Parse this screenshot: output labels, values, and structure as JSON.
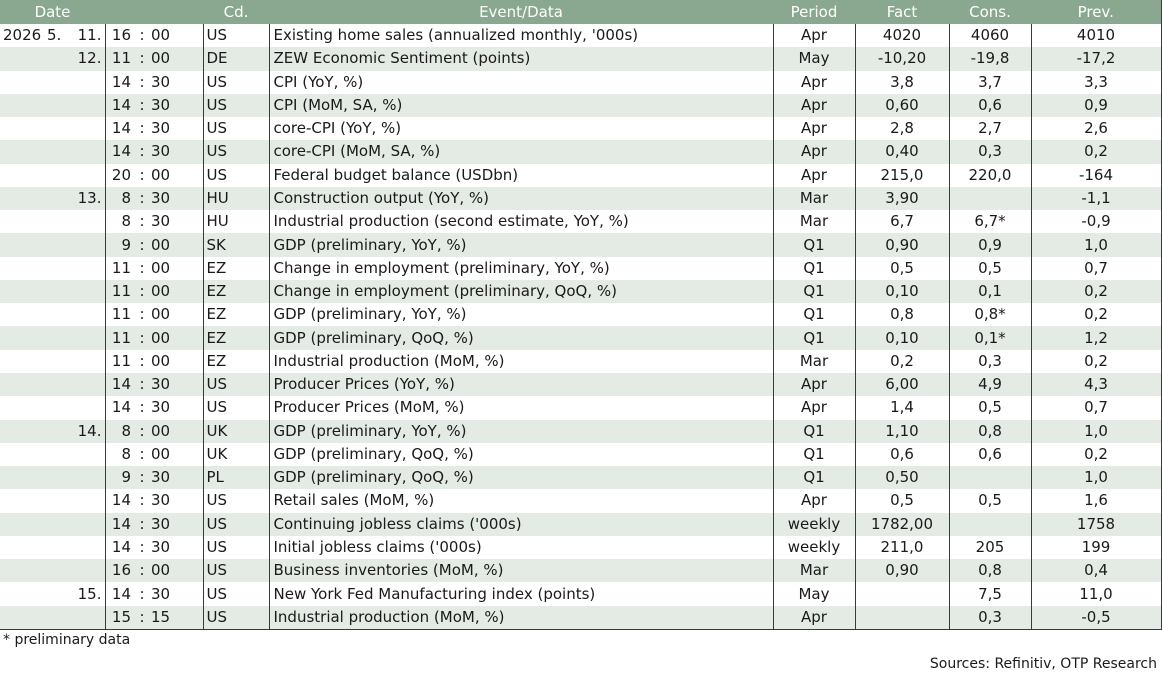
{
  "headers": {
    "date": "Date",
    "cd": "Cd.",
    "event": "Event/Data",
    "period": "Period",
    "fact": "Fact",
    "cons": "Cons.",
    "prev": "Prev."
  },
  "rows": [
    {
      "year": "2026",
      "month": "5.",
      "day": "11.",
      "hh": "16",
      "mm": "00",
      "cd": "US",
      "event": "Existing home sales (annualized monthly, '000s)",
      "period": "Apr",
      "fact": "4020",
      "cons": "4060",
      "prev": "4010"
    },
    {
      "year": "",
      "month": "",
      "day": "12.",
      "hh": "11",
      "mm": "00",
      "cd": "DE",
      "event": "ZEW Economic Sentiment (points)",
      "period": "May",
      "fact": "-10,20",
      "cons": "-19,8",
      "prev": "-17,2"
    },
    {
      "year": "",
      "month": "",
      "day": "",
      "hh": "14",
      "mm": "30",
      "cd": "US",
      "event": "CPI (YoY, %)",
      "period": "Apr",
      "fact": "3,8",
      "cons": "3,7",
      "prev": "3,3"
    },
    {
      "year": "",
      "month": "",
      "day": "",
      "hh": "14",
      "mm": "30",
      "cd": "US",
      "event": "CPI (MoM, SA, %)",
      "period": "Apr",
      "fact": "0,60",
      "cons": "0,6",
      "prev": "0,9"
    },
    {
      "year": "",
      "month": "",
      "day": "",
      "hh": "14",
      "mm": "30",
      "cd": "US",
      "event": "core-CPI (YoY, %)",
      "period": "Apr",
      "fact": "2,8",
      "cons": "2,7",
      "prev": "2,6"
    },
    {
      "year": "",
      "month": "",
      "day": "",
      "hh": "14",
      "mm": "30",
      "cd": "US",
      "event": "core-CPI (MoM, SA, %)",
      "period": "Apr",
      "fact": "0,40",
      "cons": "0,3",
      "prev": "0,2"
    },
    {
      "year": "",
      "month": "",
      "day": "",
      "hh": "20",
      "mm": "00",
      "cd": "US",
      "event": "Federal budget balance (USDbn)",
      "period": "Apr",
      "fact": "215,0",
      "cons": "220,0",
      "prev": "-164"
    },
    {
      "year": "",
      "month": "",
      "day": "13.",
      "hh": "8",
      "mm": "30",
      "cd": "HU",
      "event": "Construction output (YoY, %)",
      "period": "Mar",
      "fact": "3,90",
      "cons": "",
      "prev": "-1,1"
    },
    {
      "year": "",
      "month": "",
      "day": "",
      "hh": "8",
      "mm": "30",
      "cd": "HU",
      "event": "Industrial production (second estimate, YoY, %)",
      "period": "Mar",
      "fact": "6,7",
      "cons": "6,7*",
      "prev": "-0,9"
    },
    {
      "year": "",
      "month": "",
      "day": "",
      "hh": "9",
      "mm": "00",
      "cd": "SK",
      "event": "GDP (preliminary, YoY, %)",
      "period": "Q1",
      "fact": "0,90",
      "cons": "0,9",
      "prev": "1,0"
    },
    {
      "year": "",
      "month": "",
      "day": "",
      "hh": "11",
      "mm": "00",
      "cd": "EZ",
      "event": "Change in employment (preliminary, YoY, %)",
      "period": "Q1",
      "fact": "0,5",
      "cons": "0,5",
      "prev": "0,7"
    },
    {
      "year": "",
      "month": "",
      "day": "",
      "hh": "11",
      "mm": "00",
      "cd": "EZ",
      "event": "Change in employment (preliminary, QoQ, %)",
      "period": "Q1",
      "fact": "0,10",
      "cons": "0,1",
      "prev": "0,2"
    },
    {
      "year": "",
      "month": "",
      "day": "",
      "hh": "11",
      "mm": "00",
      "cd": "EZ",
      "event": "GDP (preliminary, YoY, %)",
      "period": "Q1",
      "fact": "0,8",
      "cons": "0,8*",
      "prev": "0,2"
    },
    {
      "year": "",
      "month": "",
      "day": "",
      "hh": "11",
      "mm": "00",
      "cd": "EZ",
      "event": "GDP (preliminary, QoQ, %)",
      "period": "Q1",
      "fact": "0,10",
      "cons": "0,1*",
      "prev": "1,2"
    },
    {
      "year": "",
      "month": "",
      "day": "",
      "hh": "11",
      "mm": "00",
      "cd": "EZ",
      "event": "Industrial production (MoM, %)",
      "period": "Mar",
      "fact": "0,2",
      "cons": "0,3",
      "prev": "0,2"
    },
    {
      "year": "",
      "month": "",
      "day": "",
      "hh": "14",
      "mm": "30",
      "cd": "US",
      "event": "Producer Prices (YoY, %)",
      "period": "Apr",
      "fact": "6,00",
      "cons": "4,9",
      "prev": "4,3"
    },
    {
      "year": "",
      "month": "",
      "day": "",
      "hh": "14",
      "mm": "30",
      "cd": "US",
      "event": "Producer Prices (MoM, %)",
      "period": "Apr",
      "fact": "1,4",
      "cons": "0,5",
      "prev": "0,7"
    },
    {
      "year": "",
      "month": "",
      "day": "14.",
      "hh": "8",
      "mm": "00",
      "cd": "UK",
      "event": "GDP (preliminary, YoY, %)",
      "period": "Q1",
      "fact": "1,10",
      "cons": "0,8",
      "prev": "1,0"
    },
    {
      "year": "",
      "month": "",
      "day": "",
      "hh": "8",
      "mm": "00",
      "cd": "UK",
      "event": "GDP (preliminary, QoQ, %)",
      "period": "Q1",
      "fact": "0,6",
      "cons": "0,6",
      "prev": "0,2"
    },
    {
      "year": "",
      "month": "",
      "day": "",
      "hh": "9",
      "mm": "30",
      "cd": "PL",
      "event": "GDP (preliminary, QoQ, %)",
      "period": "Q1",
      "fact": "0,50",
      "cons": "",
      "prev": "1,0"
    },
    {
      "year": "",
      "month": "",
      "day": "",
      "hh": "14",
      "mm": "30",
      "cd": "US",
      "event": "Retail sales (MoM, %)",
      "period": "Apr",
      "fact": "0,5",
      "cons": "0,5",
      "prev": "1,6"
    },
    {
      "year": "",
      "month": "",
      "day": "",
      "hh": "14",
      "mm": "30",
      "cd": "US",
      "event": "Continuing jobless claims ('000s)",
      "period": "weekly",
      "fact": "1782,00",
      "cons": "",
      "prev": "1758"
    },
    {
      "year": "",
      "month": "",
      "day": "",
      "hh": "14",
      "mm": "30",
      "cd": "US",
      "event": "Initial jobless claims ('000s)",
      "period": "weekly",
      "fact": "211,0",
      "cons": "205",
      "prev": "199"
    },
    {
      "year": "",
      "month": "",
      "day": "",
      "hh": "16",
      "mm": "00",
      "cd": "US",
      "event": "Business inventories (MoM, %)",
      "period": "Mar",
      "fact": "0,90",
      "cons": "0,8",
      "prev": "0,4"
    },
    {
      "year": "",
      "month": "",
      "day": "15.",
      "hh": "14",
      "mm": "30",
      "cd": "US",
      "event": "New York Fed Manufacturing index (points)",
      "period": "May",
      "fact": "",
      "cons": "7,5",
      "prev": "11,0"
    },
    {
      "year": "",
      "month": "",
      "day": "",
      "hh": "15",
      "mm": "15",
      "cd": "US",
      "event": "Industrial production (MoM, %)",
      "period": "Apr",
      "fact": "",
      "cons": "0,3",
      "prev": "-0,5"
    }
  ],
  "time_separator": ":",
  "footnote": "* preliminary data",
  "sources": "Sources: Refinitiv, OTP Research",
  "colors": {
    "header_bg": "#8aa78f",
    "header_text": "#ffffff",
    "stripe_bg": "#e3ebe4"
  }
}
